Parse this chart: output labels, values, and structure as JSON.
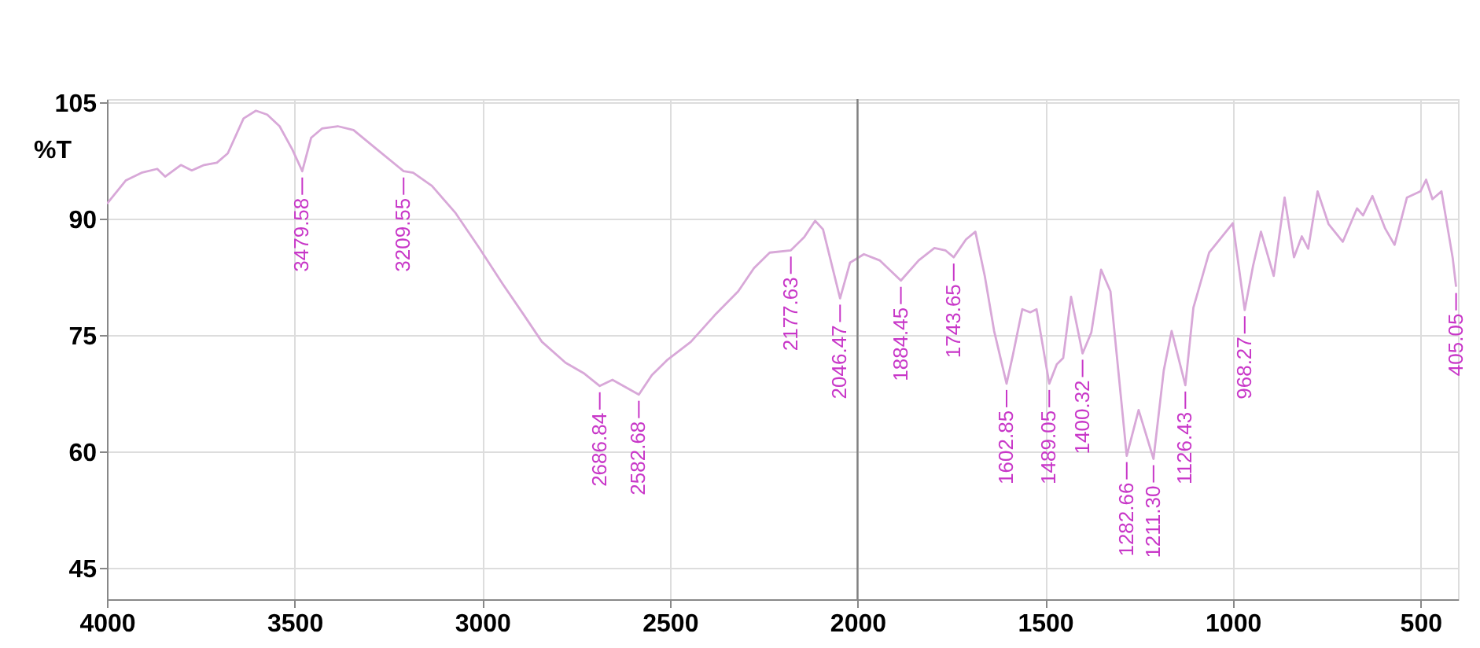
{
  "chart_data": {
    "type": "line",
    "ylabel": "%T",
    "x": [
      4000,
      3950,
      3908,
      3866,
      3845,
      3803,
      3774,
      3741,
      3707,
      3678,
      3636,
      3603,
      3573,
      3540,
      3506,
      3479.58,
      3456,
      3427,
      3385,
      3343,
      3280,
      3209.55,
      3184,
      3134,
      3071,
      3008,
      2946,
      2891,
      2841,
      2778,
      2728,
      2686.84,
      2653,
      2582.68,
      2548,
      2506,
      2444,
      2381,
      2318,
      2276,
      2234,
      2177.63,
      2142,
      2113,
      2092,
      2046.47,
      2020,
      1983,
      1941,
      1884.45,
      1837,
      1795,
      1766,
      1743.65,
      1711,
      1686,
      1661,
      1636,
      1602.85,
      1586,
      1561,
      1540,
      1523,
      1489.05,
      1469,
      1452,
      1431,
      1400.32,
      1377,
      1351,
      1326,
      1282.66,
      1251,
      1211.3,
      1184,
      1163,
      1126.43,
      1105,
      1063,
      1000,
      968.27,
      946,
      925,
      891,
      862,
      837,
      816,
      799,
      774,
      745,
      707,
      669,
      653,
      628,
      594,
      569,
      536,
      500,
      485,
      468,
      444,
      414,
      405.05
    ],
    "values": [
      92,
      95,
      96,
      96.5,
      95.5,
      97,
      96.3,
      97,
      97.3,
      98.5,
      103,
      104,
      103.5,
      102,
      99,
      96.2,
      100.5,
      101.7,
      102,
      101.5,
      99,
      96.2,
      96,
      94.3,
      90.8,
      86.3,
      81.7,
      77.8,
      74.2,
      71.5,
      70.1,
      68.5,
      69.3,
      67.4,
      69.9,
      71.9,
      74.2,
      77.6,
      80.7,
      83.7,
      85.7,
      86,
      87.7,
      89.8,
      88.7,
      79.8,
      84.4,
      85.5,
      84.7,
      82.1,
      84.7,
      86.3,
      86,
      85.1,
      87.4,
      88.4,
      82.7,
      75.6,
      68.8,
      72.5,
      78.4,
      78,
      78.4,
      68.8,
      71.3,
      72.1,
      80,
      72.7,
      75.4,
      83.5,
      80.7,
      59.5,
      65.4,
      59.1,
      70.5,
      75.6,
      68.6,
      78.6,
      85.7,
      89.5,
      78.3,
      84,
      88.4,
      82.7,
      92.8,
      85.1,
      87.8,
      86.2,
      93.6,
      89.4,
      87.1,
      91.4,
      90.5,
      93,
      88.8,
      86.7,
      92.8,
      93.6,
      95.1,
      92.6,
      93.6,
      85,
      81.3
    ],
    "color": "#d8a8d8",
    "xlim": [
      4000,
      400
    ],
    "xticks": [
      4000,
      3500,
      3000,
      2500,
      2000,
      1500,
      1000,
      500
    ],
    "ylim": [
      41,
      105.5
    ],
    "yticks": [
      45,
      60,
      75,
      90,
      105
    ],
    "grid": true,
    "ref_lines": [
      {
        "axis": "x",
        "value": 2000,
        "color": "#808080"
      }
    ],
    "annotations": [
      {
        "text": "3479.58",
        "x": 3479.58,
        "y": 96.2
      },
      {
        "text": "3209.55",
        "x": 3209.55,
        "y": 96.2
      },
      {
        "text": "2686.84",
        "x": 2686.84,
        "y": 68.5
      },
      {
        "text": "2582.68",
        "x": 2582.68,
        "y": 67.4
      },
      {
        "text": "2177.63",
        "x": 2177.63,
        "y": 86
      },
      {
        "text": "2046.47",
        "x": 2046.47,
        "y": 79.8
      },
      {
        "text": "1884.45",
        "x": 1884.45,
        "y": 82.1
      },
      {
        "text": "1743.65",
        "x": 1743.65,
        "y": 85.1
      },
      {
        "text": "1602.85",
        "x": 1602.85,
        "y": 68.8
      },
      {
        "text": "1489.05",
        "x": 1489.05,
        "y": 68.8
      },
      {
        "text": "1400.32",
        "x": 1400.32,
        "y": 72.7
      },
      {
        "text": "1282.66",
        "x": 1282.66,
        "y": 59.5
      },
      {
        "text": "1211.30",
        "x": 1211.3,
        "y": 59.1
      },
      {
        "text": "1126.43",
        "x": 1126.43,
        "y": 68.6
      },
      {
        "text": "968.27",
        "x": 968.27,
        "y": 78.3
      },
      {
        "text": "405.05",
        "x": 405.05,
        "y": 81.3
      }
    ]
  }
}
